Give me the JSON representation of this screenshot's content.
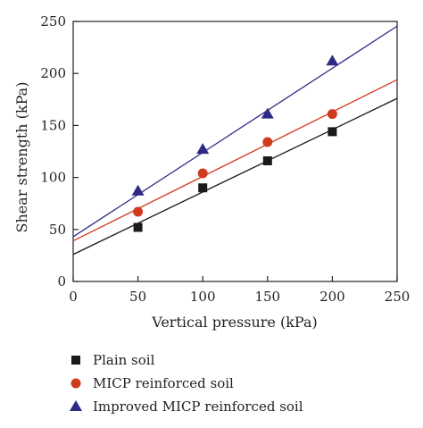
{
  "chart_data": {
    "type": "scatter",
    "title": "",
    "xlabel": "Vertical pressure (kPa)",
    "ylabel": "Shear strength (kPa)",
    "xlim": [
      0,
      250
    ],
    "ylim": [
      0,
      250
    ],
    "xticks": [
      "0",
      "50",
      "100",
      "150",
      "200",
      "250"
    ],
    "yticks": [
      "0",
      "50",
      "100",
      "150",
      "200",
      "250"
    ],
    "grid": false,
    "legend_position": "bottom",
    "series": [
      {
        "name": "Plain soil",
        "marker": "square",
        "color": "#1a1a1a",
        "x": [
          50,
          100,
          150,
          200
        ],
        "y": [
          52,
          90,
          116,
          144
        ],
        "fit": {
          "intercept": 26,
          "slope": 0.6
        }
      },
      {
        "name": "MICP reinforced soil",
        "marker": "circle",
        "color": "#d03a1f",
        "x": [
          50,
          100,
          150,
          200
        ],
        "y": [
          67,
          104,
          134,
          161
        ],
        "fit": {
          "intercept": 39,
          "slope": 0.62
        }
      },
      {
        "name": "Improved MICP reinforced soil",
        "marker": "triangle",
        "color": "#2e2a86",
        "x": [
          50,
          100,
          150,
          200
        ],
        "y": [
          87,
          127,
          161,
          212
        ],
        "fit": {
          "intercept": 43,
          "slope": 0.81
        }
      }
    ]
  }
}
